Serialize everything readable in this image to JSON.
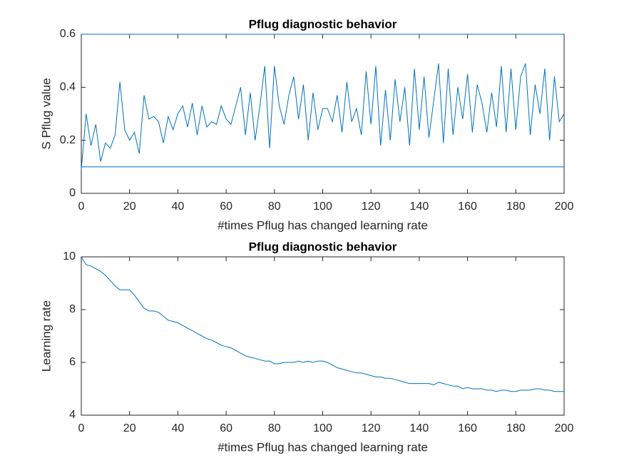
{
  "chart_data": [
    {
      "type": "line",
      "title": "Pflug diagnostic behavior",
      "xlabel": "#times Pflug has changed learning rate",
      "ylabel": "S Pflug value",
      "x": [
        0,
        2,
        4,
        6,
        8,
        10,
        12,
        14,
        16,
        18,
        20,
        22,
        24,
        26,
        28,
        30,
        32,
        34,
        36,
        38,
        40,
        42,
        44,
        46,
        48,
        50,
        52,
        54,
        56,
        58,
        60,
        62,
        64,
        66,
        68,
        70,
        72,
        74,
        76,
        78,
        80,
        82,
        84,
        86,
        88,
        90,
        92,
        94,
        96,
        98,
        100,
        102,
        104,
        106,
        108,
        110,
        112,
        114,
        116,
        118,
        120,
        122,
        124,
        126,
        128,
        130,
        132,
        134,
        136,
        138,
        140,
        142,
        144,
        146,
        148,
        150,
        152,
        154,
        156,
        158,
        160,
        162,
        164,
        166,
        168,
        170,
        172,
        174,
        176,
        178,
        180,
        182,
        184,
        186,
        188,
        190,
        192,
        194,
        196,
        198,
        200
      ],
      "series": [
        {
          "color": "#0072bd",
          "values": [
            0.09,
            0.3,
            0.18,
            0.26,
            0.12,
            0.19,
            0.17,
            0.22,
            0.42,
            0.24,
            0.2,
            0.23,
            0.15,
            0.37,
            0.28,
            0.29,
            0.27,
            0.19,
            0.29,
            0.24,
            0.3,
            0.33,
            0.25,
            0.34,
            0.22,
            0.33,
            0.25,
            0.27,
            0.26,
            0.33,
            0.28,
            0.26,
            0.33,
            0.4,
            0.22,
            0.38,
            0.2,
            0.33,
            0.48,
            0.17,
            0.48,
            0.33,
            0.26,
            0.37,
            0.44,
            0.28,
            0.41,
            0.2,
            0.38,
            0.24,
            0.32,
            0.32,
            0.27,
            0.37,
            0.23,
            0.42,
            0.27,
            0.32,
            0.22,
            0.46,
            0.26,
            0.48,
            0.18,
            0.39,
            0.2,
            0.43,
            0.27,
            0.4,
            0.18,
            0.47,
            0.24,
            0.44,
            0.21,
            0.35,
            0.49,
            0.19,
            0.47,
            0.22,
            0.4,
            0.28,
            0.45,
            0.23,
            0.41,
            0.34,
            0.23,
            0.38,
            0.25,
            0.48,
            0.23,
            0.47,
            0.24,
            0.44,
            0.49,
            0.22,
            0.41,
            0.3,
            0.47,
            0.2,
            0.44,
            0.27,
            0.3
          ]
        }
      ],
      "reference_lines": [
        0.1,
        0.6
      ],
      "xlim": [
        0,
        200
      ],
      "xticks": [
        0,
        20,
        40,
        60,
        80,
        100,
        120,
        140,
        160,
        180,
        200
      ],
      "ylim": [
        0,
        0.6
      ],
      "yticks": [
        0,
        0.2,
        0.4,
        0.6
      ]
    },
    {
      "type": "line",
      "title": "Pflug diagnostic behavior",
      "xlabel": "#times Pflug has changed learning rate",
      "ylabel": "Learning rate",
      "x": [
        0,
        2,
        4,
        6,
        8,
        10,
        12,
        14,
        16,
        18,
        20,
        22,
        24,
        26,
        28,
        30,
        32,
        34,
        36,
        38,
        40,
        42,
        44,
        46,
        48,
        50,
        52,
        54,
        56,
        58,
        60,
        62,
        64,
        66,
        68,
        70,
        72,
        74,
        76,
        78,
        80,
        82,
        84,
        86,
        88,
        90,
        92,
        94,
        96,
        98,
        100,
        102,
        104,
        106,
        108,
        110,
        112,
        114,
        116,
        118,
        120,
        122,
        124,
        126,
        128,
        130,
        132,
        134,
        136,
        138,
        140,
        142,
        144,
        146,
        148,
        150,
        152,
        154,
        156,
        158,
        160,
        162,
        164,
        166,
        168,
        170,
        172,
        174,
        176,
        178,
        180,
        182,
        184,
        186,
        188,
        190,
        192,
        194,
        196,
        198,
        200
      ],
      "series": [
        {
          "color": "#0072bd",
          "values": [
            10,
            9.7,
            9.65,
            9.55,
            9.45,
            9.3,
            9.1,
            8.9,
            8.75,
            8.75,
            8.75,
            8.55,
            8.3,
            8.05,
            7.95,
            7.95,
            7.9,
            7.75,
            7.6,
            7.55,
            7.5,
            7.4,
            7.3,
            7.2,
            7.1,
            7.0,
            6.9,
            6.85,
            6.75,
            6.65,
            6.6,
            6.55,
            6.45,
            6.35,
            6.25,
            6.2,
            6.15,
            6.1,
            6.05,
            6.05,
            5.95,
            5.95,
            6.0,
            6.0,
            6.0,
            6.05,
            6.0,
            6.05,
            6.0,
            6.05,
            6.05,
            6.0,
            5.9,
            5.8,
            5.75,
            5.7,
            5.65,
            5.6,
            5.6,
            5.55,
            5.5,
            5.45,
            5.45,
            5.4,
            5.4,
            5.35,
            5.3,
            5.25,
            5.2,
            5.2,
            5.2,
            5.2,
            5.2,
            5.15,
            5.25,
            5.2,
            5.15,
            5.1,
            5.1,
            5.0,
            5.05,
            5.0,
            5.0,
            5.0,
            4.95,
            4.95,
            4.9,
            4.95,
            4.95,
            4.9,
            4.9,
            4.95,
            4.95,
            4.95,
            5.0,
            5.0,
            4.95,
            4.95,
            4.9,
            4.9,
            4.9
          ]
        }
      ],
      "xlim": [
        0,
        200
      ],
      "xticks": [
        0,
        20,
        40,
        60,
        80,
        100,
        120,
        140,
        160,
        180,
        200
      ],
      "ylim": [
        4,
        10
      ],
      "yticks": [
        4,
        6,
        8,
        10
      ]
    }
  ]
}
